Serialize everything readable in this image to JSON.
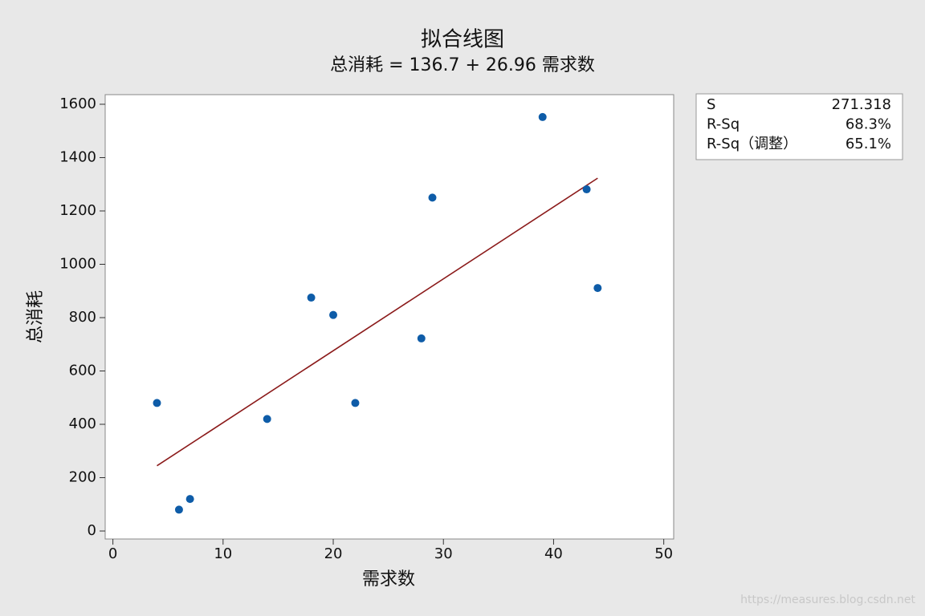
{
  "chart_data": {
    "type": "scatter",
    "title": "拟合线图",
    "subtitle": "总消耗 = 136.7 + 26.96 需求数",
    "x_label": "需求数",
    "y_label": "总消耗",
    "x": [
      4,
      6,
      7,
      14,
      18,
      20,
      22,
      28,
      29,
      39,
      43,
      44
    ],
    "values": [
      480,
      80,
      120,
      420,
      875,
      810,
      480,
      722,
      1250,
      1552,
      1281,
      911
    ],
    "color": "#0e5ca8",
    "fit_line": {
      "x": [
        4,
        44
      ],
      "values": [
        244.5,
        1322.9
      ],
      "color": "#8b1a1a"
    },
    "xlim": [
      -0.7,
      50.9
    ],
    "ylim": [
      -30,
      1636
    ],
    "xticks": [
      0,
      10,
      20,
      30,
      40,
      50
    ],
    "yticks": [
      0,
      200,
      400,
      600,
      800,
      1000,
      1200,
      1400,
      1600
    ],
    "stats": [
      [
        "S",
        "271.318"
      ],
      [
        "R-Sq",
        "68.3%"
      ],
      [
        "R-Sq（调整）",
        "65.1%"
      ]
    ]
  },
  "watermark": "https://measures.blog.csdn.net"
}
